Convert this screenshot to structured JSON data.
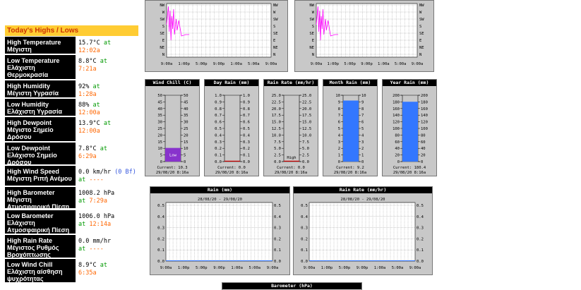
{
  "highs_lows": {
    "title": "Today's Highs / Lows",
    "rows": [
      {
        "label": "High Temperature Μέγιστη Θερμοκρασία",
        "value": "15.7°C",
        "at": "at",
        "time": "12:02a"
      },
      {
        "label": "Low Temperature Ελάχιστη Θερμοκρασία",
        "value": "8.8°C",
        "at": "at",
        "time": "7:21a"
      },
      {
        "label": "High Humidity Μέγιστη Υγρασία",
        "value": "92%",
        "at": "at",
        "time": "1:28a"
      },
      {
        "label": "Low Humidity Ελάχιστη Υγρασία",
        "value": "88%",
        "at": "at",
        "time": "12:00a"
      },
      {
        "label": "High Dewpoint Μέγιστο Σημείο Δρόσου",
        "value": "13.9°C",
        "at": "at",
        "time": "12:00a"
      },
      {
        "label": "Low Dewpoint Ελάχιστο Σημείο Δρόσου",
        "value": "7.8°C",
        "at": "at",
        "time": "6:29a"
      },
      {
        "label": "High Wind Speed Μέγιστη Ριπή Ανέμου",
        "value": "0.0 km/hr",
        "extra": "(0 Bf)",
        "at": "at",
        "time": "----"
      },
      {
        "label": "High Barometer Μέγιστη Ατμοσφαιρική Πίεση",
        "value": "1008.2 hPa",
        "at": "at",
        "time": "7:29a"
      },
      {
        "label": "Low Barometer Ελάχιστη Ατμοσφαιρική Πίεση",
        "value": "1006.0 hPa",
        "at": "at",
        "time": "12:14a"
      },
      {
        "label": "High Rain Rate Μέγιστος Ρυθμός Βροχόπτωσης",
        "value": "0.0 mm/hr",
        "at": "at",
        "time": "----"
      },
      {
        "label": "Low Wind Chill Ελάχιστη αίσθηση ψυχρότητας",
        "value": "8.9°C",
        "at": "at",
        "time": "6:35a"
      }
    ]
  },
  "wind_direction_charts": {
    "y_ticks": [
      "NW",
      "W",
      "SW",
      "S",
      "SE",
      "E",
      "NE",
      "N"
    ],
    "x_ticks": [
      "9:00a",
      "1:00p",
      "5:00p",
      "9:00p",
      "1:00a",
      "5:00a",
      "9:00a"
    ],
    "line_color": "#ff00ff"
  },
  "gauges": [
    {
      "title": "Wind Chill (C)",
      "ticks": [
        "50",
        "45",
        "40",
        "35",
        "30",
        "25",
        "20",
        "15",
        "10",
        "5",
        "0"
      ],
      "max": 50,
      "value": 10.3,
      "fill": "#8833cc",
      "fill_label": "Low",
      "current": "Current: 10.3",
      "date": "29/08/20  8:16a"
    },
    {
      "title": "Day Rain (mm)",
      "ticks": [
        "1.0",
        "0.9",
        "0.8",
        "0.7",
        "0.6",
        "0.5",
        "0.4",
        "0.3",
        "0.2",
        "0.1",
        "0.0"
      ],
      "max": 1.0,
      "value": 0.0,
      "fill": "#cc0000",
      "fill_label": "",
      "current": "Current: 0.0",
      "date": "29/08/20  8:16a"
    },
    {
      "title": "Rain Rate (mm/hr)",
      "ticks": [
        "25.0",
        "22.5",
        "20.0",
        "17.5",
        "15.0",
        "12.5",
        "10.0",
        "7.5",
        "5.0",
        "2.5",
        "0.0"
      ],
      "max": 25.0,
      "value": 0.0,
      "fill": "#cc0000",
      "fill_label": "High",
      "current": "Current: 0.0",
      "date": "29/08/20  8:16a"
    },
    {
      "title": "Month Rain (mm)",
      "ticks": [
        "10",
        "9",
        "8",
        "7",
        "6",
        "5",
        "4",
        "3",
        "2",
        "1",
        "0"
      ],
      "max": 10,
      "value": 9.2,
      "fill": "#3377ff",
      "fill_label": "",
      "current": "Current: 9.2",
      "date": "29/08/20  8:16a"
    },
    {
      "title": "Year Rain (mm)",
      "ticks": [
        "200",
        "180",
        "160",
        "140",
        "120",
        "100",
        "80",
        "60",
        "40",
        "20",
        "0"
      ],
      "max": 200,
      "value": 180.4,
      "fill": "#3377ff",
      "fill_label": "",
      "current": "Current: 180.4",
      "date": "29/08/20  8:16a"
    }
  ],
  "rain_charts": [
    {
      "title": "Rain (mm)",
      "subtitle": "28/08/20 - 29/08/20",
      "y_ticks": [
        "0.5",
        "0.4",
        "0.3",
        "0.2",
        "0.1",
        "0.0"
      ],
      "x_ticks": [
        "9:00a",
        "1:00p",
        "5:00p",
        "9:00p",
        "1:00a",
        "5:00a",
        "9:00a"
      ]
    },
    {
      "title": "Rain Rate (mm/hr)",
      "subtitle": "28/08/20 - 29/08/20",
      "y_ticks": [
        "0.5",
        "0.4",
        "0.3",
        "0.2",
        "0.1",
        "0.0"
      ],
      "x_ticks": [
        "9:00a",
        "1:00p",
        "5:00p",
        "9:00p",
        "1:00a",
        "5:00a",
        "9:00a"
      ]
    }
  ],
  "barometer": {
    "title": "Barometer (hPa)"
  }
}
